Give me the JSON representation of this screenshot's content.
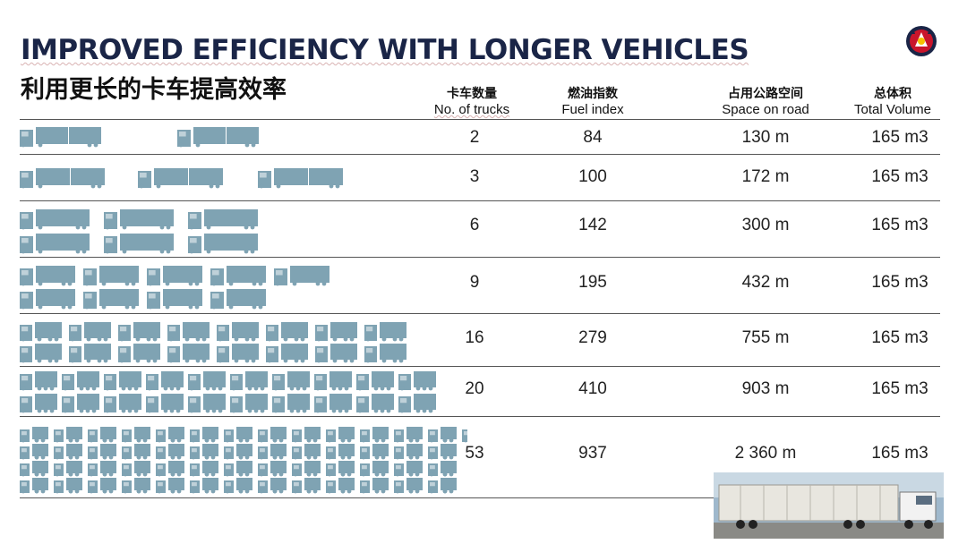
{
  "title_en": "IMPROVED EFFICIENCY WITH  LONGER VEHICLES",
  "title_zh": "利用更长的卡车提高效率",
  "logo_icon": "scania-griffin-logo",
  "headers": {
    "trucks_zh": "卡车数量",
    "trucks_en": "No. of trucks",
    "fuel_zh": "燃油指数",
    "fuel_en": "Fuel index",
    "space_zh": "占用公路空间",
    "space_en": "Space on road",
    "vol_zh": "总体积",
    "vol_en": "Total Volume"
  },
  "icon_color": "#7fa3b3",
  "rows": [
    {
      "trucks": "2",
      "fuel": "84",
      "space": "130 m",
      "volume": "165 m3"
    },
    {
      "trucks": "3",
      "fuel": "100",
      "space": "172 m",
      "volume": "165 m3"
    },
    {
      "trucks": "6",
      "fuel": "142",
      "space": "300 m",
      "volume": "165 m3"
    },
    {
      "trucks": "9",
      "fuel": "195",
      "space": "432 m",
      "volume": "165 m3"
    },
    {
      "trucks": "16",
      "fuel": "279",
      "space": "755 m",
      "volume": "165 m3"
    },
    {
      "trucks": "20",
      "fuel": "410",
      "space": "903 m",
      "volume": "165 m3"
    },
    {
      "trucks": "53",
      "fuel": "937",
      "space": "2 360 m",
      "volume": "165 m3"
    }
  ],
  "photo_icon": "long-truck-photo"
}
